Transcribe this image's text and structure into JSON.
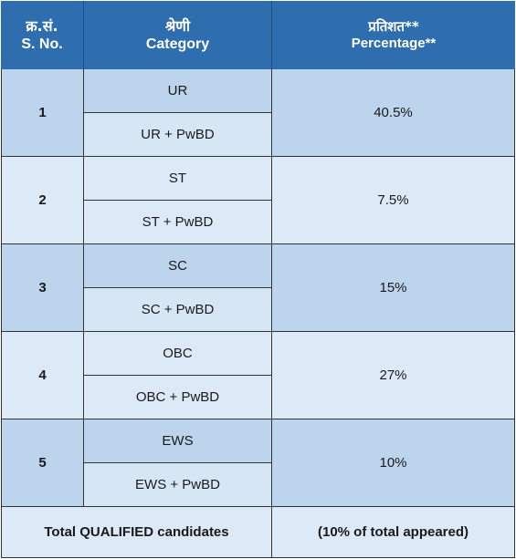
{
  "header": {
    "sno_hi": "क्र.सं.",
    "sno_en": "S. No.",
    "category_hi": "श्रेणी",
    "category_en": "Category",
    "percentage_hi": "प्रतिशत**",
    "percentage_en": "Percentage**"
  },
  "rows": [
    {
      "sno": "1",
      "cat1": "UR",
      "cat2": "UR + PwBD",
      "pct": "40.5%"
    },
    {
      "sno": "2",
      "cat1": "ST",
      "cat2": "ST + PwBD",
      "pct": "7.5%"
    },
    {
      "sno": "3",
      "cat1": "SC",
      "cat2": "SC + PwBD",
      "pct": "15%"
    },
    {
      "sno": "4",
      "cat1": "OBC",
      "cat2": "OBC + PwBD",
      "pct": "27%"
    },
    {
      "sno": "5",
      "cat1": "EWS",
      "cat2": "EWS + PwBD",
      "pct": "10%"
    }
  ],
  "total": {
    "label": "Total QUALIFIED candidates",
    "value": "(10% of total appeared)"
  }
}
